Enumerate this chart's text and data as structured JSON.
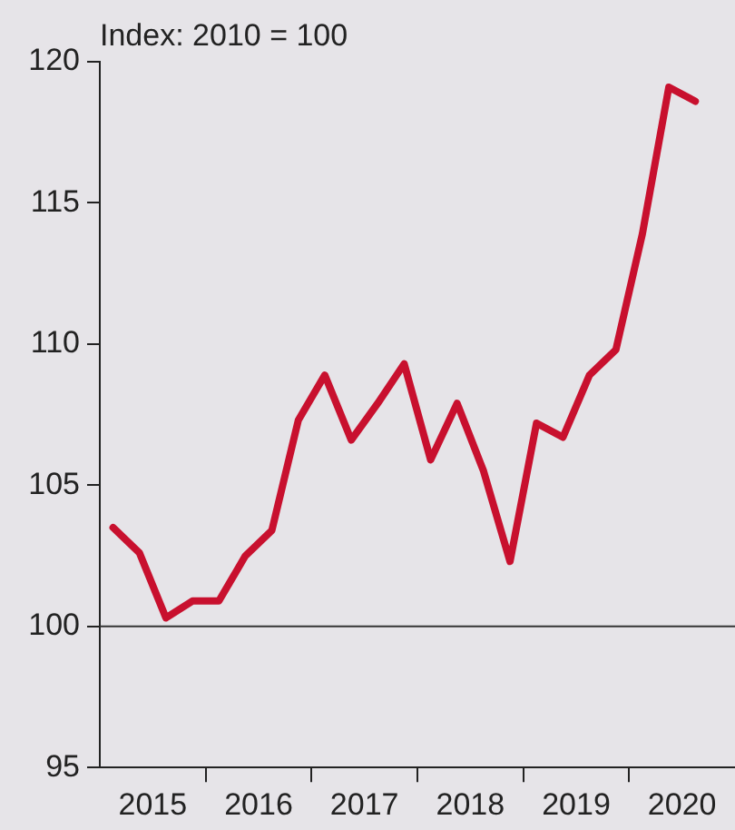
{
  "chart_data": {
    "type": "line",
    "ylabel": "Index: 2010 = 100",
    "x": [
      2015.125,
      2015.375,
      2015.625,
      2015.875,
      2016.125,
      2016.375,
      2016.625,
      2016.875,
      2017.125,
      2017.375,
      2017.625,
      2017.875,
      2018.125,
      2018.375,
      2018.625,
      2018.875,
      2019.125,
      2019.375,
      2019.625,
      2019.875,
      2020.125,
      2020.375,
      2020.625
    ],
    "series": [
      {
        "color": "#c8102e",
        "values": [
          103.5,
          102.6,
          100.3,
          100.9,
          100.9,
          102.5,
          103.4,
          107.3,
          108.9,
          106.6,
          107.9,
          109.3,
          105.9,
          107.9,
          105.5,
          102.3,
          107.2,
          106.7,
          108.9,
          109.8,
          113.9,
          119.1,
          118.6
        ]
      }
    ],
    "xlim": [
      2015,
      2021
    ],
    "xticks": [
      {
        "value": 2015.5,
        "label": "2015"
      },
      {
        "value": 2016,
        "label": null
      },
      {
        "value": 2016.5,
        "label": "2016"
      },
      {
        "value": 2017,
        "label": null
      },
      {
        "value": 2017.5,
        "label": "2017"
      },
      {
        "value": 2018,
        "label": null
      },
      {
        "value": 2018.5,
        "label": "2018"
      },
      {
        "value": 2019,
        "label": null
      },
      {
        "value": 2019.5,
        "label": "2019"
      },
      {
        "value": 2020,
        "label": null
      },
      {
        "value": 2020.5,
        "label": "2020"
      }
    ],
    "ylim": [
      95,
      120
    ],
    "yticks": [
      95,
      100,
      105,
      110,
      115,
      120
    ],
    "ref_lines": [
      {
        "axis": "y",
        "value": 100,
        "color": "#333333"
      }
    ],
    "grid": false,
    "legend": false,
    "marker": "none",
    "line_style": "solid"
  }
}
